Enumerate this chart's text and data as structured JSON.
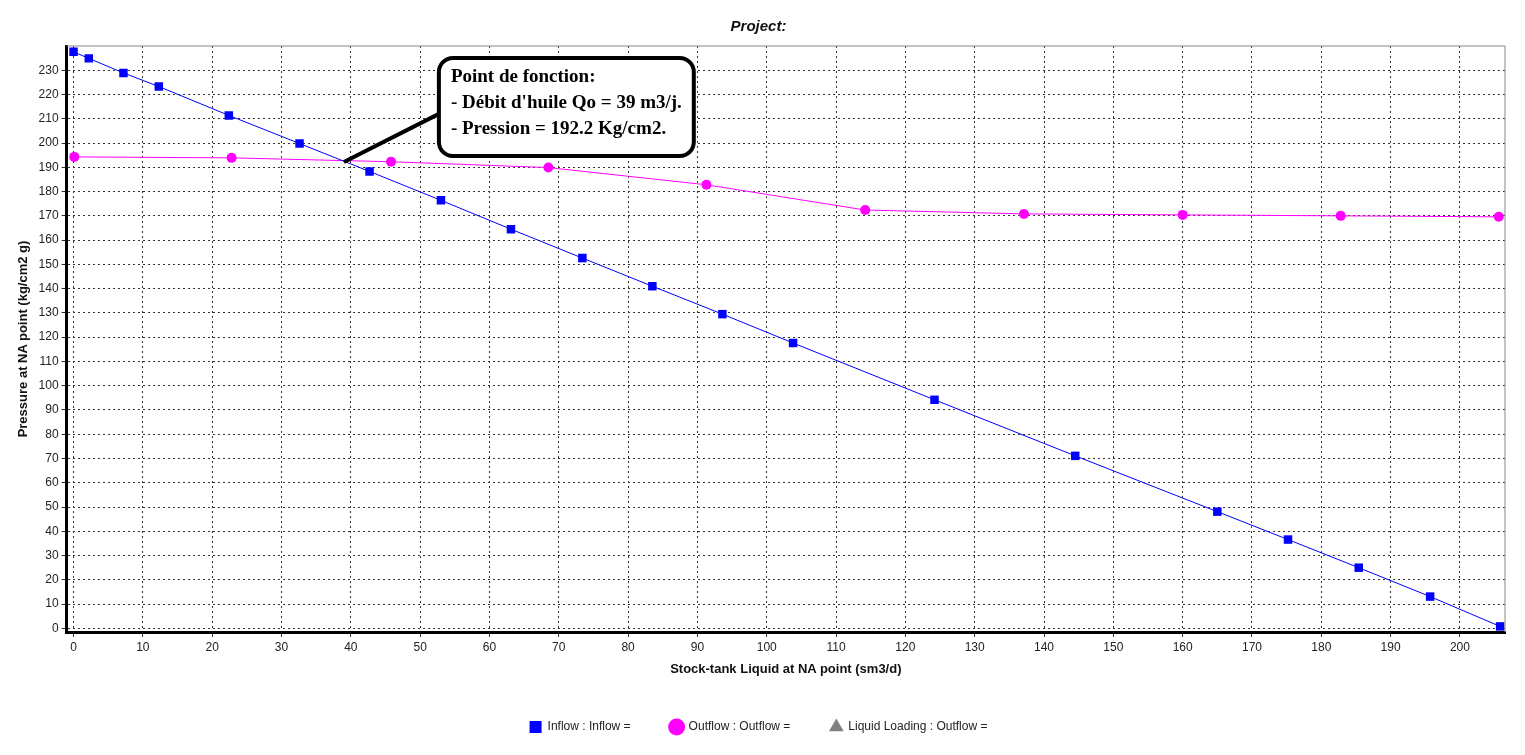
{
  "chart_data": {
    "type": "line",
    "title": "Project:",
    "xlabel": "Stock-tank Liquid at NA point (sm3/d)",
    "ylabel": "Pressure at NA point (kg/cm2 g)",
    "xlim": [
      -1,
      206.5
    ],
    "xticks": [
      0,
      10,
      20,
      30,
      40,
      50,
      60,
      70,
      80,
      90,
      100,
      110,
      120,
      130,
      140,
      150,
      160,
      170,
      180,
      190,
      200
    ],
    "ylim": [
      -1.5,
      240
    ],
    "yticks": [
      0,
      10,
      20,
      30,
      40,
      50,
      60,
      70,
      80,
      90,
      100,
      110,
      120,
      130,
      140,
      150,
      160,
      170,
      180,
      190,
      200,
      210,
      220,
      230
    ],
    "grid": true,
    "legend": "bottom",
    "line_style": "solid",
    "annotations": [
      {
        "text": "Point de fonction:\n- Débit d'huile Qo = 39 m3/j.\n- Pression = 192.2 Kg/cm2.",
        "x": 39,
        "y": 192.2
      }
    ],
    "series": [
      {
        "name": "Inflow : Inflow =",
        "color": "#0000ff",
        "marker": "square",
        "x": [
          0,
          2.2,
          7.2,
          12.3,
          22.4,
          32.6,
          42.7,
          53,
          63.1,
          73.4,
          83.5,
          93.6,
          103.8,
          124.2,
          144.5,
          165,
          175.2,
          185.4,
          195.7,
          205.8
        ],
        "values": [
          237.6,
          234.9,
          228.9,
          223.3,
          211.4,
          199.8,
          188.3,
          176.4,
          164.5,
          152.6,
          141,
          129.5,
          117.6,
          94.2,
          71.1,
          48.1,
          36.6,
          25,
          13.1,
          0.8
        ]
      },
      {
        "name": "Outflow : Outflow =",
        "color": "#ff00ff",
        "marker": "circle",
        "x": [
          0.1,
          22.8,
          45.8,
          68.5,
          91.3,
          114.2,
          137.1,
          160,
          182.8,
          205.6
        ],
        "values": [
          194.3,
          193.9,
          192.3,
          189.9,
          182.8,
          172.4,
          170.8,
          170.4,
          170,
          169.6
        ]
      },
      {
        "name": "Liquid Loading : Outflow =",
        "color": "#808080",
        "marker": "triangle"
      }
    ]
  }
}
